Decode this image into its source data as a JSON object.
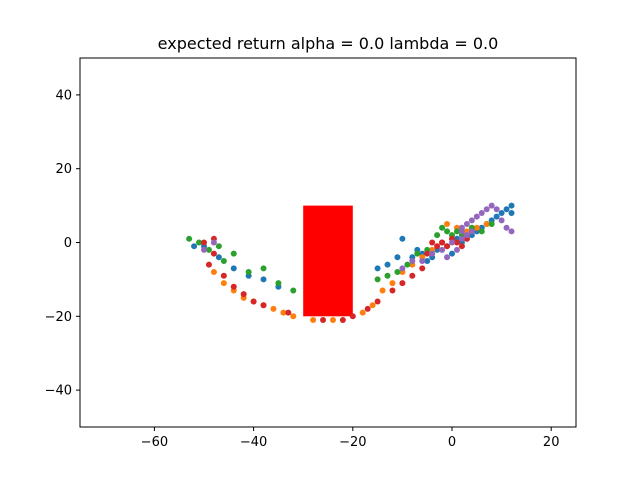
{
  "chart_data": {
    "type": "scatter",
    "title": "expected return alpha = 0.0 lambda = 0.0",
    "xlabel": "",
    "ylabel": "",
    "xlim": [
      -75,
      25
    ],
    "ylim": [
      -50,
      50
    ],
    "xticks": [
      -60,
      -40,
      -20,
      0,
      20
    ],
    "yticks": [
      -40,
      -20,
      0,
      20,
      40
    ],
    "grid": false,
    "legend": "none",
    "obstacle": {
      "x": [
        -30,
        -20
      ],
      "y": [
        -20,
        10
      ],
      "color": "#ff0000"
    },
    "series": [
      {
        "color": "#1f77b4",
        "points": [
          [
            -52,
            -1
          ],
          [
            -50,
            -1
          ],
          [
            -47,
            -4
          ],
          [
            -44,
            -7
          ],
          [
            -41,
            -9
          ],
          [
            -38,
            -10
          ],
          [
            -35,
            -12
          ],
          [
            -15,
            -7
          ],
          [
            -13,
            -6
          ],
          [
            -11,
            -4
          ],
          [
            -10,
            1
          ],
          [
            -8,
            -4
          ],
          [
            -7,
            -2
          ],
          [
            -6,
            -3
          ],
          [
            -5,
            -5
          ],
          [
            -4,
            -4
          ],
          [
            -3,
            -2
          ],
          [
            -2,
            0
          ],
          [
            -1,
            -1
          ],
          [
            0,
            -3
          ],
          [
            1,
            1
          ],
          [
            2,
            0
          ],
          [
            3,
            1
          ],
          [
            4,
            2
          ],
          [
            5,
            3
          ],
          [
            6,
            4
          ],
          [
            7,
            5
          ],
          [
            8,
            6
          ],
          [
            9,
            7
          ],
          [
            10,
            8
          ],
          [
            11,
            9
          ],
          [
            12,
            10
          ],
          [
            12,
            8
          ]
        ]
      },
      {
        "color": "#ff7f0e",
        "points": [
          [
            -48,
            -8
          ],
          [
            -46,
            -11
          ],
          [
            -44,
            -13
          ],
          [
            -42,
            -15
          ],
          [
            -40,
            -16
          ],
          [
            -38,
            -17
          ],
          [
            -36,
            -18
          ],
          [
            -34,
            -19
          ],
          [
            -32,
            -20
          ],
          [
            -28,
            -21
          ],
          [
            -24,
            -21
          ],
          [
            -18,
            -19
          ],
          [
            -16,
            -17
          ],
          [
            -14,
            -13
          ],
          [
            -12,
            -11
          ],
          [
            -10,
            -8
          ],
          [
            -8,
            -6
          ],
          [
            -6,
            -4
          ],
          [
            -4,
            -2
          ],
          [
            -2,
            0
          ],
          [
            0,
            1
          ],
          [
            -1,
            5
          ],
          [
            1,
            4
          ],
          [
            3,
            3
          ],
          [
            5,
            4
          ],
          [
            7,
            5
          ]
        ]
      },
      {
        "color": "#2ca02c",
        "points": [
          [
            -53,
            1
          ],
          [
            -51,
            0
          ],
          [
            -49,
            -2
          ],
          [
            -47,
            -1
          ],
          [
            -46,
            -5
          ],
          [
            -44,
            -3
          ],
          [
            -41,
            -8
          ],
          [
            -38,
            -7
          ],
          [
            -35,
            -11
          ],
          [
            -32,
            -13
          ],
          [
            -15,
            -10
          ],
          [
            -13,
            -9
          ],
          [
            -11,
            -8
          ],
          [
            -9,
            -6
          ],
          [
            -7,
            -3
          ],
          [
            -5,
            -2
          ],
          [
            -3,
            2
          ],
          [
            -2,
            4
          ],
          [
            -1,
            3
          ],
          [
            0,
            2
          ],
          [
            1,
            3
          ],
          [
            2,
            2
          ],
          [
            4,
            4
          ],
          [
            6,
            3
          ],
          [
            8,
            5
          ]
        ]
      },
      {
        "color": "#d62728",
        "points": [
          [
            -49,
            -6
          ],
          [
            -48,
            -3
          ],
          [
            -46,
            -9
          ],
          [
            -44,
            -12
          ],
          [
            -42,
            -14
          ],
          [
            -40,
            -16
          ],
          [
            -38,
            -17
          ],
          [
            -33,
            -19
          ],
          [
            -26,
            -21
          ],
          [
            -22,
            -21
          ],
          [
            -20,
            -20
          ],
          [
            -17,
            -18
          ],
          [
            -15,
            -16
          ],
          [
            -12,
            -13
          ],
          [
            -10,
            -11
          ],
          [
            -8,
            -9
          ],
          [
            -6,
            -7
          ],
          [
            -5,
            -3
          ],
          [
            -4,
            0
          ],
          [
            -3,
            -1
          ],
          [
            -2,
            0
          ],
          [
            -1,
            -1
          ],
          [
            0,
            1
          ],
          [
            1,
            0
          ],
          [
            2,
            -1
          ],
          [
            3,
            1
          ],
          [
            -50,
            0
          ],
          [
            -48,
            1
          ]
        ]
      },
      {
        "color": "#9467bd",
        "points": [
          [
            -50,
            -2
          ],
          [
            -48,
            0
          ],
          [
            -10,
            -7
          ],
          [
            -8,
            -5
          ],
          [
            -6,
            -5
          ],
          [
            -4,
            -3
          ],
          [
            -2,
            -2
          ],
          [
            -1,
            -4
          ],
          [
            0,
            0
          ],
          [
            1,
            -2
          ],
          [
            2,
            1
          ],
          [
            2,
            4
          ],
          [
            3,
            2
          ],
          [
            3,
            5
          ],
          [
            4,
            6
          ],
          [
            5,
            7
          ],
          [
            6,
            8
          ],
          [
            7,
            9
          ],
          [
            8,
            10
          ],
          [
            9,
            9
          ],
          [
            10,
            6
          ],
          [
            11,
            4
          ],
          [
            12,
            3
          ],
          [
            4,
            3
          ],
          [
            2,
            3
          ]
        ]
      }
    ]
  }
}
